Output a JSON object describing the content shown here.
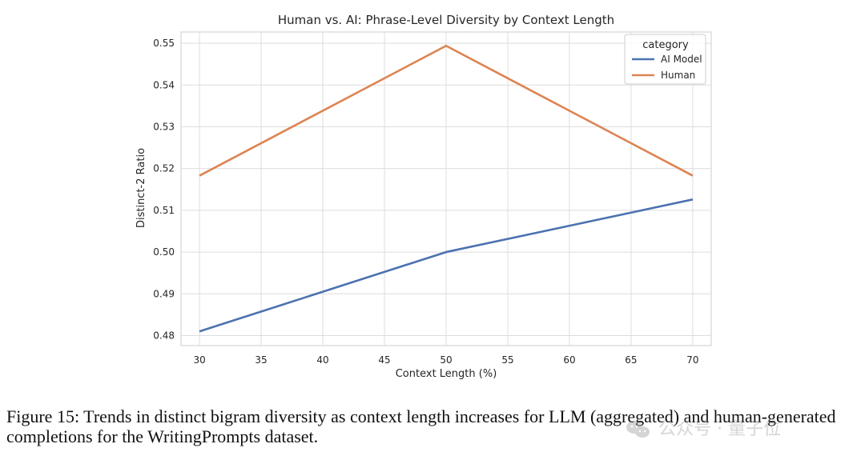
{
  "chart_data": {
    "type": "line",
    "title": "Human vs. AI: Phrase-Level Diversity by Context Length",
    "xlabel": "Context Length (%)",
    "ylabel": "Distinct-2 Ratio",
    "xlim": [
      28.5,
      71.5
    ],
    "ylim": [
      0.4776,
      0.5527
    ],
    "x_ticks": [
      30,
      35,
      40,
      45,
      50,
      55,
      60,
      65,
      70
    ],
    "y_ticks": [
      0.48,
      0.49,
      0.5,
      0.51,
      0.52,
      0.53,
      0.54,
      0.55
    ],
    "y_tick_labels": [
      "0.48",
      "0.49",
      "0.50",
      "0.51",
      "0.52",
      "0.53",
      "0.54",
      "0.55"
    ],
    "x": [
      30,
      50,
      70
    ],
    "grid": true,
    "legend": {
      "title": "category",
      "placement": "top-right"
    },
    "series": [
      {
        "name": "AI Model",
        "color": "#4c72b0",
        "values": [
          0.481,
          0.5,
          0.5126
        ]
      },
      {
        "name": "Human",
        "color": "#dd8452",
        "values": [
          0.5183,
          0.5494,
          0.5183
        ]
      }
    ]
  },
  "caption": "Figure 15: Trends in distinct bigram diversity as context length increases for LLM (aggregated) and human-generated completions for the WritingPrompts dataset.",
  "watermark": {
    "icon": "wechat-icon",
    "text": "公众号 · 量子位",
    "color": "#888888"
  }
}
